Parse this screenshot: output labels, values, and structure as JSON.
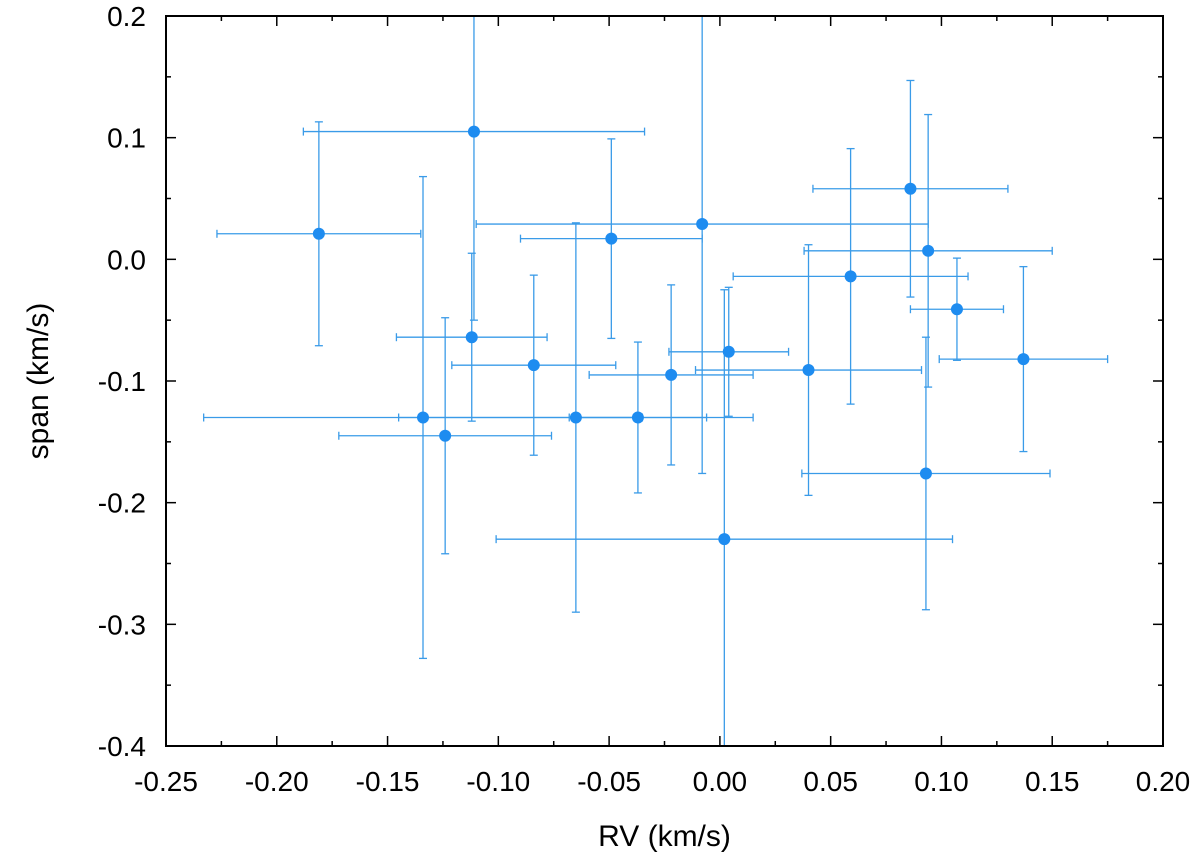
{
  "chart_data": {
    "type": "scatter",
    "title": "",
    "xlabel": "RV (km/s)",
    "ylabel": "span (km/s)",
    "xlim": [
      -0.25,
      0.2
    ],
    "ylim": [
      -0.4,
      0.2
    ],
    "xticks": [
      -0.25,
      -0.2,
      -0.15,
      -0.1,
      -0.05,
      0.0,
      0.05,
      0.1,
      0.15,
      0.2
    ],
    "xtick_labels": [
      "-0.25",
      "-0.20",
      "-0.15",
      "-0.10",
      "-0.05",
      "0.00",
      "0.05",
      "0.10",
      "0.15",
      "0.20"
    ],
    "yticks": [
      -0.4,
      -0.3,
      -0.2,
      -0.1,
      0.0,
      0.1,
      0.2
    ],
    "ytick_labels": [
      "-0.4",
      "-0.3",
      "-0.2",
      "-0.1",
      "0.0",
      "0.1",
      "0.2"
    ],
    "grid": false,
    "legend": "none",
    "color": "#1e8cf0",
    "errorbar_color": "#3a9be8",
    "points": [
      {
        "x": -0.181,
        "y": 0.021,
        "xerr": [
          0.046,
          0.046
        ],
        "yerr": [
          0.092,
          0.092
        ]
      },
      {
        "x": -0.111,
        "y": 0.105,
        "xerr": [
          0.077,
          0.077
        ],
        "yerr": [
          0.155,
          0.155
        ]
      },
      {
        "x": -0.112,
        "y": -0.064,
        "xerr": [
          0.034,
          0.034
        ],
        "yerr": [
          0.069,
          0.069
        ]
      },
      {
        "x": -0.134,
        "y": -0.13,
        "xerr": [
          0.099,
          0.099
        ],
        "yerr": [
          0.198,
          0.198
        ]
      },
      {
        "x": -0.124,
        "y": -0.145,
        "xerr": [
          0.048,
          0.048
        ],
        "yerr": [
          0.097,
          0.097
        ]
      },
      {
        "x": -0.084,
        "y": -0.087,
        "xerr": [
          0.037,
          0.037
        ],
        "yerr": [
          0.074,
          0.074
        ]
      },
      {
        "x": -0.065,
        "y": -0.13,
        "xerr": [
          0.08,
          0.08
        ],
        "yerr": [
          0.16,
          0.16
        ]
      },
      {
        "x": -0.049,
        "y": 0.017,
        "xerr": [
          0.041,
          0.041
        ],
        "yerr": [
          0.082,
          0.082
        ]
      },
      {
        "x": -0.037,
        "y": -0.13,
        "xerr": [
          0.031,
          0.031
        ],
        "yerr": [
          0.062,
          0.062
        ]
      },
      {
        "x": -0.022,
        "y": -0.095,
        "xerr": [
          0.037,
          0.037
        ],
        "yerr": [
          0.074,
          0.074
        ]
      },
      {
        "x": -0.008,
        "y": 0.029,
        "xerr": [
          0.102,
          0.102
        ],
        "yerr": [
          0.205,
          0.205
        ]
      },
      {
        "x": 0.004,
        "y": -0.076,
        "xerr": [
          0.027,
          0.027
        ],
        "yerr": [
          0.053,
          0.053
        ]
      },
      {
        "x": 0.002,
        "y": -0.23,
        "xerr": [
          0.103,
          0.103
        ],
        "yerr": [
          0.205,
          0.205
        ]
      },
      {
        "x": 0.04,
        "y": -0.091,
        "xerr": [
          0.051,
          0.051
        ],
        "yerr": [
          0.103,
          0.103
        ]
      },
      {
        "x": 0.059,
        "y": -0.014,
        "xerr": [
          0.053,
          0.053
        ],
        "yerr": [
          0.105,
          0.105
        ]
      },
      {
        "x": 0.086,
        "y": 0.058,
        "xerr": [
          0.044,
          0.044
        ],
        "yerr": [
          0.089,
          0.089
        ]
      },
      {
        "x": 0.094,
        "y": 0.007,
        "xerr": [
          0.056,
          0.056
        ],
        "yerr": [
          0.112,
          0.112
        ]
      },
      {
        "x": 0.107,
        "y": -0.041,
        "xerr": [
          0.021,
          0.021
        ],
        "yerr": [
          0.042,
          0.042
        ]
      },
      {
        "x": 0.137,
        "y": -0.082,
        "xerr": [
          0.038,
          0.038
        ],
        "yerr": [
          0.076,
          0.076
        ]
      },
      {
        "x": 0.093,
        "y": -0.176,
        "xerr": [
          0.056,
          0.056
        ],
        "yerr": [
          0.112,
          0.112
        ]
      }
    ]
  }
}
